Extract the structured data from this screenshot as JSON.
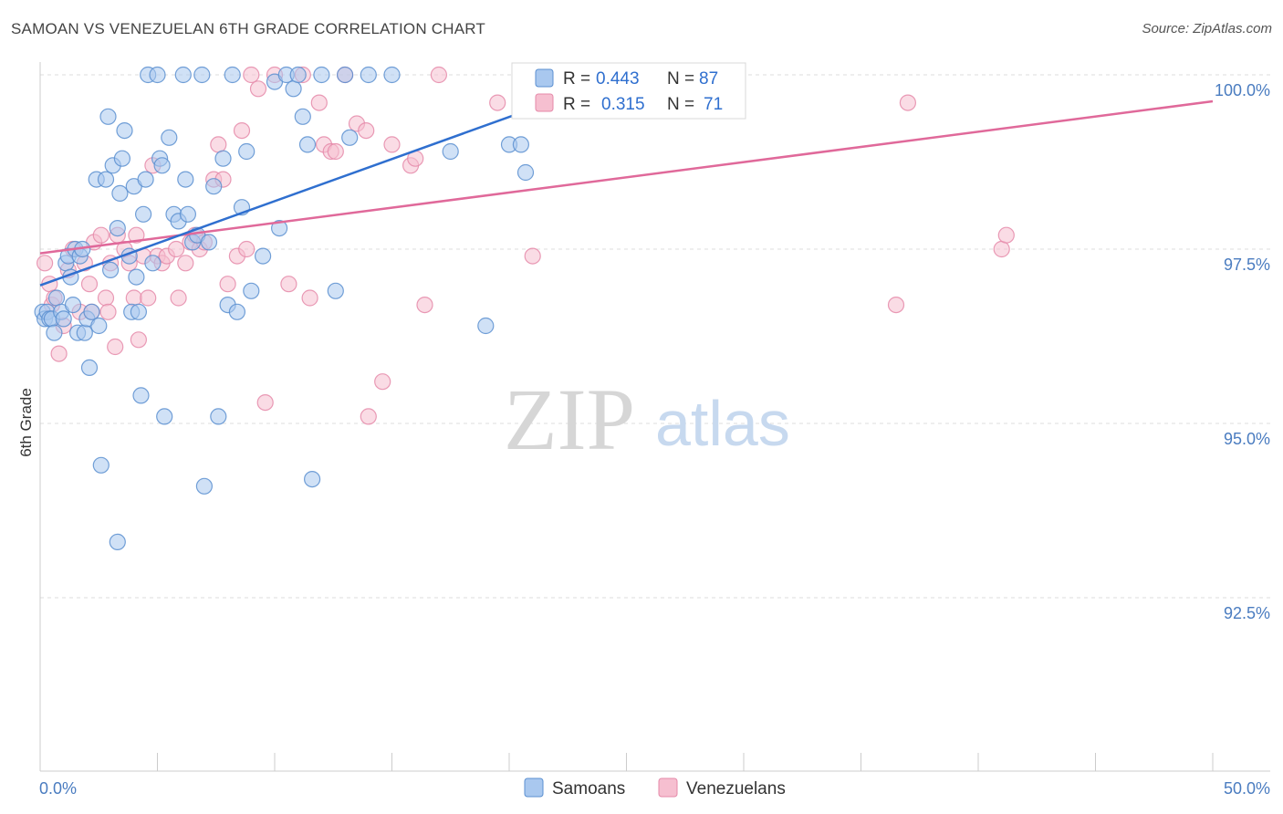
{
  "title": "SAMOAN VS VENEZUELAN 6TH GRADE CORRELATION CHART",
  "source": "Source: ZipAtlas.com",
  "watermark": {
    "zip": "ZIP",
    "atlas": "atlas"
  },
  "legend": {
    "r_label": "R =",
    "n_label": "N =",
    "series": [
      {
        "name": "Samoans",
        "r": "0.443",
        "n": "87"
      },
      {
        "name": "Venezuelans",
        "r": "0.315",
        "n": "71"
      }
    ]
  },
  "colors": {
    "samoans_fill": "#a9c8ef",
    "samoans_stroke": "#5b8fd0",
    "samoans_line": "#2f6fcf",
    "venezuelans_fill": "#f6bfd0",
    "venezuelans_stroke": "#e58aa9",
    "venezuelans_line": "#e0699a",
    "axis_label": "#4a7cc0"
  },
  "chart_data": {
    "type": "scatter",
    "title": "SAMOAN VS VENEZUELAN 6TH GRADE CORRELATION CHART",
    "xlabel": "",
    "ylabel": "6th Grade",
    "xlim": [
      0,
      50
    ],
    "ylim": [
      90.0,
      100.5
    ],
    "x_tick_labels": [
      "0.0%",
      "50.0%"
    ],
    "y_ticks": [
      92.5,
      95.0,
      97.5,
      100.0
    ],
    "y_tick_labels": [
      "92.5%",
      "95.0%",
      "97.5%",
      "100.0%"
    ],
    "grid": true,
    "legend_position": "top-center",
    "series": [
      {
        "name": "Samoans",
        "r": 0.443,
        "n": 87,
        "trendline": {
          "x": [
            0.0,
            25.0
          ],
          "y": [
            96.98,
            100.0
          ]
        },
        "points": [
          [
            0.1,
            96.6
          ],
          [
            0.2,
            96.5
          ],
          [
            0.3,
            96.6
          ],
          [
            0.4,
            96.5
          ],
          [
            0.5,
            96.5
          ],
          [
            0.6,
            96.3
          ],
          [
            0.7,
            96.8
          ],
          [
            0.9,
            96.6
          ],
          [
            1.0,
            96.5
          ],
          [
            1.1,
            97.3
          ],
          [
            1.2,
            97.4
          ],
          [
            1.3,
            97.1
          ],
          [
            1.4,
            96.7
          ],
          [
            1.5,
            97.5
          ],
          [
            1.6,
            96.3
          ],
          [
            1.7,
            97.4
          ],
          [
            1.8,
            97.5
          ],
          [
            1.9,
            96.3
          ],
          [
            2.0,
            96.5
          ],
          [
            2.1,
            95.8
          ],
          [
            2.2,
            96.6
          ],
          [
            2.4,
            98.5
          ],
          [
            2.5,
            96.4
          ],
          [
            2.6,
            94.4
          ],
          [
            2.8,
            98.5
          ],
          [
            2.9,
            99.4
          ],
          [
            3.0,
            97.2
          ],
          [
            3.1,
            98.7
          ],
          [
            3.3,
            97.8
          ],
          [
            3.4,
            98.3
          ],
          [
            3.5,
            98.8
          ],
          [
            3.6,
            99.2
          ],
          [
            3.8,
            97.4
          ],
          [
            3.9,
            96.6
          ],
          [
            4.0,
            98.4
          ],
          [
            4.1,
            97.1
          ],
          [
            4.2,
            96.6
          ],
          [
            4.3,
            95.4
          ],
          [
            4.4,
            98.0
          ],
          [
            4.5,
            98.5
          ],
          [
            4.6,
            100.0
          ],
          [
            4.8,
            97.3
          ],
          [
            5.0,
            100.0
          ],
          [
            5.1,
            98.8
          ],
          [
            5.2,
            98.7
          ],
          [
            5.3,
            95.1
          ],
          [
            5.5,
            99.1
          ],
          [
            5.7,
            98.0
          ],
          [
            5.9,
            97.9
          ],
          [
            6.1,
            100.0
          ],
          [
            6.2,
            98.5
          ],
          [
            6.3,
            98.0
          ],
          [
            6.5,
            97.6
          ],
          [
            6.7,
            97.7
          ],
          [
            6.9,
            100.0
          ],
          [
            7.0,
            94.1
          ],
          [
            7.2,
            97.6
          ],
          [
            7.4,
            98.4
          ],
          [
            7.6,
            95.1
          ],
          [
            7.8,
            98.8
          ],
          [
            8.0,
            96.7
          ],
          [
            8.2,
            100.0
          ],
          [
            8.4,
            96.6
          ],
          [
            8.6,
            98.1
          ],
          [
            8.8,
            98.9
          ],
          [
            9.0,
            96.9
          ],
          [
            9.5,
            97.4
          ],
          [
            10.0,
            99.9
          ],
          [
            10.2,
            97.8
          ],
          [
            10.5,
            100.0
          ],
          [
            10.8,
            99.8
          ],
          [
            11.0,
            100.0
          ],
          [
            11.2,
            99.4
          ],
          [
            11.4,
            99.0
          ],
          [
            11.6,
            94.2
          ],
          [
            12.0,
            100.0
          ],
          [
            12.6,
            96.9
          ],
          [
            13.0,
            100.0
          ],
          [
            13.2,
            99.1
          ],
          [
            14.0,
            100.0
          ],
          [
            15.0,
            100.0
          ],
          [
            17.5,
            98.9
          ],
          [
            19.0,
            96.4
          ],
          [
            20.0,
            99.0
          ],
          [
            20.5,
            99.0
          ],
          [
            20.7,
            98.6
          ],
          [
            3.3,
            93.3
          ]
        ]
      },
      {
        "name": "Venezuelans",
        "r": 0.315,
        "n": 71,
        "trendline": {
          "x": [
            0.0,
            50.0
          ],
          "y": [
            97.44,
            99.62
          ]
        },
        "points": [
          [
            0.2,
            97.3
          ],
          [
            0.4,
            97.0
          ],
          [
            0.5,
            96.7
          ],
          [
            0.6,
            96.8
          ],
          [
            0.8,
            96.0
          ],
          [
            1.0,
            96.4
          ],
          [
            1.2,
            97.2
          ],
          [
            1.4,
            97.5
          ],
          [
            1.7,
            96.6
          ],
          [
            1.9,
            97.3
          ],
          [
            2.1,
            97.0
          ],
          [
            2.2,
            96.6
          ],
          [
            2.3,
            97.6
          ],
          [
            2.6,
            97.7
          ],
          [
            2.8,
            96.8
          ],
          [
            2.9,
            96.6
          ],
          [
            3.0,
            97.3
          ],
          [
            3.2,
            96.1
          ],
          [
            3.3,
            97.7
          ],
          [
            3.6,
            97.5
          ],
          [
            3.8,
            97.3
          ],
          [
            4.0,
            96.8
          ],
          [
            4.1,
            97.7
          ],
          [
            4.2,
            96.2
          ],
          [
            4.4,
            97.4
          ],
          [
            4.6,
            96.8
          ],
          [
            4.8,
            98.7
          ],
          [
            5.0,
            97.4
          ],
          [
            5.2,
            97.3
          ],
          [
            5.4,
            97.4
          ],
          [
            5.8,
            97.5
          ],
          [
            5.9,
            96.8
          ],
          [
            6.2,
            97.3
          ],
          [
            6.4,
            97.6
          ],
          [
            6.6,
            97.7
          ],
          [
            6.8,
            97.5
          ],
          [
            7.0,
            97.6
          ],
          [
            7.4,
            98.5
          ],
          [
            7.6,
            99.0
          ],
          [
            7.8,
            98.5
          ],
          [
            8.0,
            97.0
          ],
          [
            8.4,
            97.4
          ],
          [
            8.6,
            99.2
          ],
          [
            8.8,
            97.5
          ],
          [
            9.0,
            100.0
          ],
          [
            9.3,
            99.8
          ],
          [
            9.6,
            95.3
          ],
          [
            10.0,
            100.0
          ],
          [
            10.6,
            97.0
          ],
          [
            11.2,
            100.0
          ],
          [
            11.5,
            96.8
          ],
          [
            11.9,
            99.6
          ],
          [
            12.1,
            99.0
          ],
          [
            12.4,
            98.9
          ],
          [
            12.6,
            98.9
          ],
          [
            13.0,
            100.0
          ],
          [
            13.5,
            99.3
          ],
          [
            13.9,
            99.2
          ],
          [
            14.0,
            95.1
          ],
          [
            14.6,
            95.6
          ],
          [
            15.0,
            99.0
          ],
          [
            15.8,
            98.7
          ],
          [
            16.0,
            98.8
          ],
          [
            16.4,
            96.7
          ],
          [
            17.0,
            100.0
          ],
          [
            19.5,
            99.6
          ],
          [
            21.0,
            97.4
          ],
          [
            36.5,
            96.7
          ],
          [
            37.0,
            99.6
          ],
          [
            41.0,
            97.5
          ],
          [
            41.2,
            97.7
          ]
        ]
      }
    ]
  }
}
